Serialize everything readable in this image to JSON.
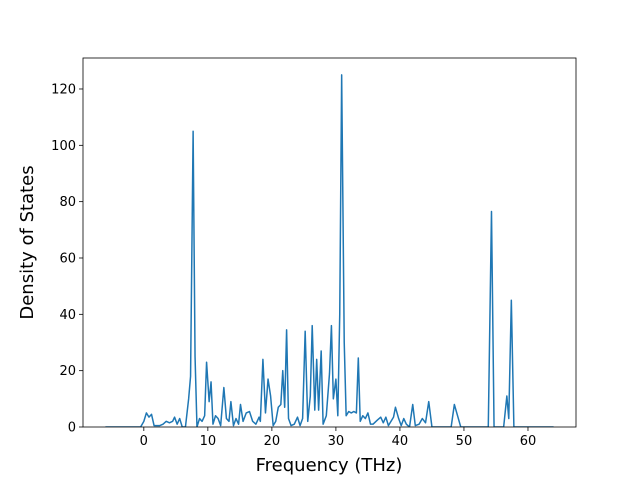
{
  "chart_data": {
    "type": "line",
    "x_label": "Frequency (THz)",
    "y_label": "Density of States",
    "xlim": [
      -9.5,
      67.5
    ],
    "ylim": [
      0,
      131
    ],
    "xticks": [
      0,
      10,
      20,
      30,
      40,
      50,
      60
    ],
    "yticks": [
      0,
      20,
      40,
      60,
      80,
      100,
      120
    ],
    "series": [
      {
        "color": "#1f77b4",
        "x": [
          -6,
          -0.5,
          0,
          0.4,
          0.8,
          1.2,
          1.6,
          2.5,
          3,
          3.5,
          4,
          4.5,
          4.8,
          5.2,
          5.6,
          6,
          6.5,
          7,
          7.3,
          7.7,
          8,
          8.3,
          8.7,
          9.1,
          9.5,
          9.8,
          10.2,
          10.5,
          10.8,
          11.2,
          11.6,
          12,
          12.5,
          12.9,
          13.3,
          13.6,
          14,
          14.4,
          14.8,
          15.1,
          15.5,
          16,
          16.5,
          17,
          17.5,
          18,
          18.2,
          18.6,
          19,
          19.4,
          19.8,
          20.2,
          20.6,
          21,
          21.4,
          21.7,
          22,
          22.3,
          22.6,
          23,
          23.5,
          24,
          24.4,
          24.8,
          25.2,
          25.6,
          26,
          26.3,
          26.7,
          27,
          27.3,
          27.7,
          28,
          28.5,
          29,
          29.3,
          29.6,
          30,
          30.3,
          30.6,
          30.9,
          31.3,
          31.6,
          32,
          32.4,
          32.8,
          33.2,
          33.5,
          33.8,
          34.2,
          34.6,
          35,
          35.4,
          35.8,
          36.5,
          37,
          37.4,
          37.8,
          38.2,
          38.6,
          39,
          39.3,
          39.8,
          40.2,
          40.6,
          41,
          41.5,
          42,
          42.4,
          43,
          43.5,
          44,
          44.5,
          45,
          48,
          48.5,
          49,
          49.5,
          53.8,
          54.3,
          54.7,
          56.2,
          56.7,
          57,
          57.4,
          57.8,
          64
        ],
        "values": [
          0,
          0,
          2,
          5,
          3.5,
          4.5,
          0.5,
          0.5,
          1,
          2,
          1.5,
          2,
          3.5,
          1,
          3,
          0,
          0,
          10,
          18,
          105,
          25,
          0,
          3,
          2,
          4,
          23,
          9,
          16,
          1,
          4,
          3,
          0.5,
          14,
          3,
          2,
          9,
          0.5,
          3,
          1,
          8,
          2,
          5,
          5.5,
          2,
          1,
          3.5,
          2,
          24,
          5,
          17,
          11,
          0.5,
          2,
          7,
          8,
          20,
          7,
          34.5,
          3,
          0.5,
          1,
          3.5,
          0.5,
          3,
          34,
          2,
          11,
          36,
          6,
          24,
          6,
          27,
          1,
          4,
          19,
          36,
          10,
          17,
          4,
          40,
          125,
          30,
          4,
          5.5,
          5,
          5.5,
          5,
          24.5,
          2,
          4,
          3,
          5,
          1,
          1,
          2.5,
          3.5,
          1.5,
          3.5,
          0.5,
          2,
          3.5,
          7,
          3,
          0.5,
          3,
          1,
          0,
          8,
          0.5,
          1,
          3,
          1.5,
          9,
          0,
          0,
          8,
          4,
          0,
          0,
          76.5,
          0,
          0,
          11,
          3,
          45,
          0,
          0
        ]
      }
    ]
  }
}
